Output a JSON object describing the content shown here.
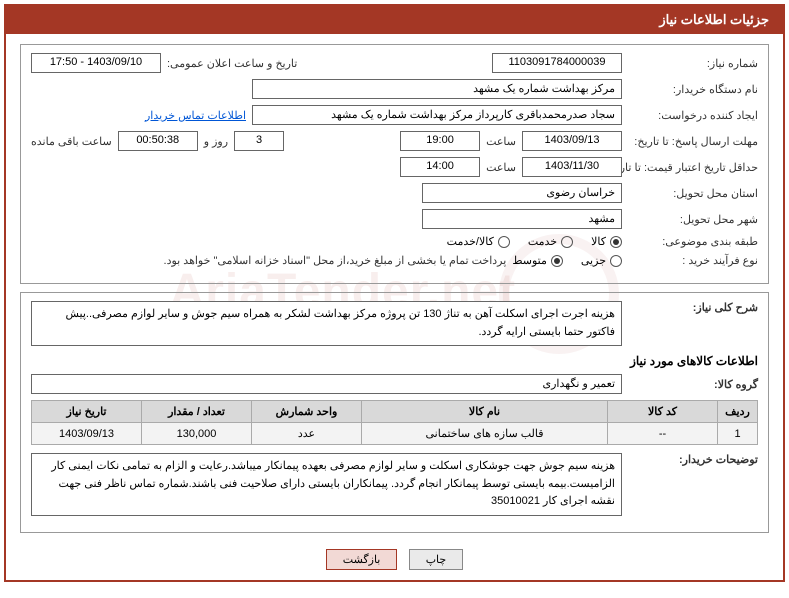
{
  "header": {
    "title": "جزئیات اطلاعات نیاز"
  },
  "watermark": "AriaTender.net",
  "info": {
    "need_number_label": "شماره نیاز:",
    "need_number": "1103091784000039",
    "announce_label": "تاریخ و ساعت اعلان عمومی:",
    "announce_value": "1403/09/10 - 17:50",
    "buyer_org_label": "نام دستگاه خریدار:",
    "buyer_org": "مرکز بهداشت شماره یک مشهد",
    "requester_label": "ایجاد کننده درخواست:",
    "requester": "سجاد صدرمحمدباقری کارپرداز مرکز بهداشت شماره یک مشهد",
    "buyer_contact_link": "اطلاعات تماس خریدار",
    "deadline_reply_label": "مهلت ارسال پاسخ: تا تاریخ:",
    "deadline_reply_date": "1403/09/13",
    "time_label": "ساعت",
    "deadline_reply_time": "19:00",
    "days_label": "روز و",
    "days_value": "3",
    "counter": "00:50:38",
    "remain_label": "ساعت باقی مانده",
    "min_valid_label": "حداقل تاریخ اعتبار قیمت: تا تاریخ:",
    "min_valid_date": "1403/11/30",
    "min_valid_time": "14:00",
    "province_label": "استان محل تحویل:",
    "province": "خراسان رضوی",
    "city_label": "شهر محل تحویل:",
    "city": "مشهد",
    "subject_class_label": "طبقه بندی موضوعی:",
    "subject_options": [
      {
        "label": "کالا",
        "selected": true
      },
      {
        "label": "خدمت",
        "selected": false
      },
      {
        "label": "کالا/خدمت",
        "selected": false
      }
    ],
    "buy_type_label": "نوع فرآیند خرید :",
    "buy_type_options": [
      {
        "label": "جزیی",
        "selected": false
      },
      {
        "label": "متوسط",
        "selected": true
      }
    ],
    "buy_type_note": "پرداخت تمام یا بخشی از مبلغ خرید،از محل \"اسناد خزانه اسلامی\" خواهد بود."
  },
  "summary": {
    "label": "شرح کلی نیاز:",
    "text": "هزینه اجرت اجرای اسکلت آهن به تناژ 130 تن پروژه مرکز بهداشت لشکر به همراه سیم جوش و سایر لوازم مصرفی..پیش فاکتور حتما بایستی ارایه گردد."
  },
  "goods_section_title": "اطلاعات کالاهای مورد نیاز",
  "goods_group_label": "گروه کالا:",
  "goods_group_value": "تعمیر و نگهداری",
  "table": {
    "headers": [
      "ردیف",
      "کد کالا",
      "نام کالا",
      "واحد شمارش",
      "تعداد / مقدار",
      "تاریخ نیاز"
    ],
    "rows": [
      [
        "1",
        "--",
        "قالب سازه های ساختمانی",
        "عدد",
        "130,000",
        "1403/09/13"
      ]
    ]
  },
  "buyer_notes": {
    "label": "توضیحات خریدار:",
    "text": "هزینه سیم جوش جهت جوشکاری اسکلت و سایر لوازم مصرفی بعهده پیمانکار میباشد.رعایت و الزام به تمامی نکات ایمنی کار الزامیست.بیمه بایستی توسط پیمانکار انجام گردد. پیمانکاران بایستی دارای صلاحیت فنی باشند.شماره تماس ناظر فنی جهت نقشه اجرای کار 35010021"
  },
  "buttons": {
    "print": "چاپ",
    "back": "بازگشت"
  },
  "styling": {
    "brand_color": "#a43725",
    "border_color": "#999",
    "header_bg": "#a43725",
    "th_bg": "#d9d9d9",
    "td_bg": "#f3f3f3",
    "link_color": "#0056d6",
    "font_size_base": 12
  }
}
